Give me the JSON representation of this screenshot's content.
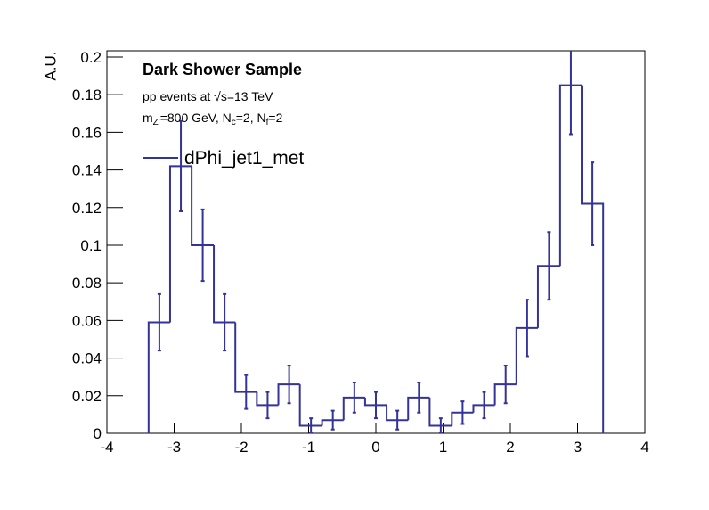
{
  "chart_data": {
    "type": "histogram",
    "ylabel": "A.U.",
    "annotations": [
      {
        "parts": [
          "Dark Shower Sample"
        ]
      },
      {
        "parts": [
          "pp events at √s=13 TeV"
        ]
      },
      {
        "parts": [
          "m",
          "Z'",
          "=800 GeV, N",
          "c",
          "=2, N",
          "f",
          "=2"
        ]
      }
    ],
    "series": [
      {
        "name": "dPhi_jet1_met",
        "color": "#333399",
        "values": [
          0.059,
          0.142,
          0.1,
          0.059,
          0.022,
          0.015,
          0.026,
          0.004,
          0.007,
          0.019,
          0.015,
          0.007,
          0.019,
          0.004,
          0.011,
          0.015,
          0.026,
          0.056,
          0.089,
          0.185,
          0.122
        ],
        "errors": [
          0.015,
          0.024,
          0.019,
          0.015,
          0.009,
          0.007,
          0.01,
          0.004,
          0.005,
          0.008,
          0.007,
          0.005,
          0.008,
          0.004,
          0.006,
          0.007,
          0.01,
          0.015,
          0.018,
          0.026,
          0.022
        ]
      }
    ],
    "bins": [
      -3.38,
      -3.06,
      -2.74,
      -2.41,
      -2.09,
      -1.77,
      -1.45,
      -1.13,
      -0.8,
      -0.48,
      -0.16,
      0.16,
      0.48,
      0.8,
      1.13,
      1.45,
      1.77,
      2.09,
      2.41,
      2.74,
      3.06,
      3.38
    ],
    "xlim": [
      -4,
      4
    ],
    "xticks": [
      -4,
      -3,
      -2,
      -1,
      0,
      1,
      2,
      3,
      4
    ],
    "ylim": [
      0,
      0.2033
    ],
    "yticks": [
      0,
      0.02,
      0.04,
      0.06,
      0.08,
      0.1,
      0.12,
      0.14,
      0.16,
      0.18,
      0.2
    ]
  }
}
